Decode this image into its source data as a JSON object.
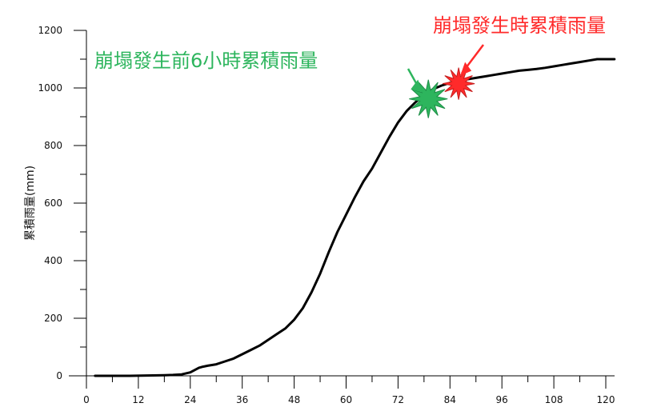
{
  "chart_data": {
    "type": "line",
    "title": "",
    "xlabel": "",
    "ylabel": "累積雨量(mm)",
    "xlim": [
      0,
      122
    ],
    "ylim": [
      0,
      1200
    ],
    "x_ticks": [
      0,
      12,
      24,
      36,
      48,
      60,
      72,
      84,
      96,
      108,
      120
    ],
    "y_ticks": [
      0,
      200,
      400,
      600,
      800,
      1000,
      1200
    ],
    "grid": false,
    "legend": "none",
    "series": [
      {
        "color": "#000000",
        "x": [
          2,
          6,
          10,
          14,
          18,
          20,
          22,
          24,
          25,
          26,
          27,
          28,
          30,
          32,
          34,
          36,
          38,
          40,
          42,
          44,
          46,
          48,
          50,
          52,
          54,
          56,
          58,
          60,
          62,
          64,
          66,
          68,
          70,
          72,
          74,
          76,
          78,
          80,
          82,
          84,
          86,
          88,
          90,
          92,
          94,
          96,
          98,
          100,
          102,
          104,
          106,
          108,
          110,
          112,
          114,
          116,
          118,
          120,
          122
        ],
        "values": [
          0,
          0,
          0,
          1,
          2,
          3,
          5,
          12,
          20,
          28,
          32,
          35,
          40,
          50,
          60,
          75,
          90,
          105,
          125,
          145,
          165,
          195,
          235,
          290,
          355,
          430,
          500,
          560,
          620,
          675,
          720,
          775,
          830,
          880,
          920,
          950,
          975,
          995,
          1008,
          1018,
          1025,
          1030,
          1035,
          1040,
          1045,
          1050,
          1055,
          1060,
          1063,
          1066,
          1070,
          1075,
          1080,
          1085,
          1090,
          1095,
          1100,
          1100,
          1100
        ]
      }
    ],
    "annotations": [
      {
        "text": "崩塌發生前6小時累積雨量",
        "x": 79,
        "y": 962,
        "color": "#2db55d"
      },
      {
        "text": "崩塌發生時累積雨量",
        "x": 86,
        "y": 1015,
        "color": "#ff2a2a"
      }
    ]
  }
}
